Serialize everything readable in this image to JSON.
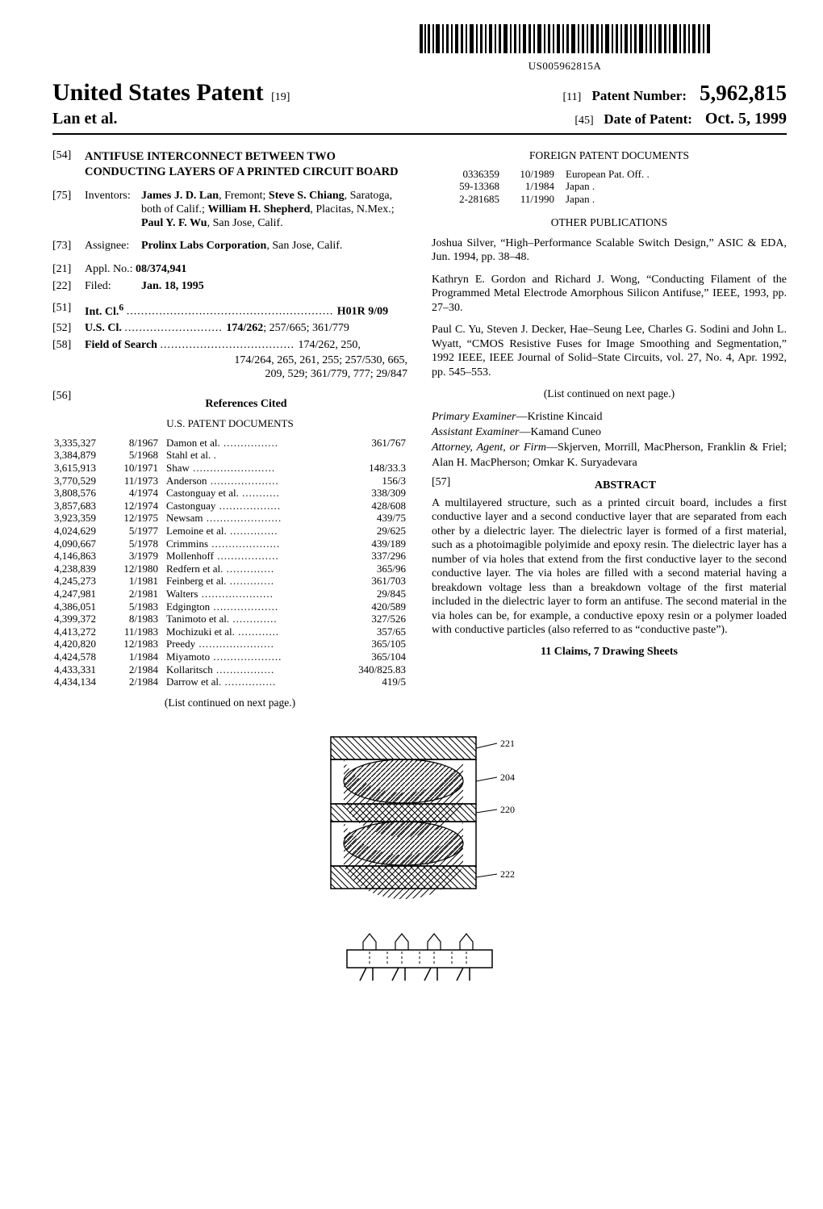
{
  "barcode_text": "US005962815A",
  "header": {
    "usp_title": "United States Patent",
    "usp_bracket": "[19]",
    "inventors_line": "Lan et al.",
    "patent_number_bracket": "[11]",
    "patent_number_label": "Patent Number:",
    "patent_number": "5,962,815",
    "date_bracket": "[45]",
    "date_label": "Date of Patent:",
    "date_value": "Oct. 5, 1999"
  },
  "left": {
    "f54_bracket": "[54]",
    "f54_title": "ANTIFUSE INTERCONNECT BETWEEN TWO CONDUCTING LAYERS OF A PRINTED CIRCUIT BOARD",
    "f75_bracket": "[75]",
    "f75_label": "Inventors:",
    "f75_value_1": "James J. D. Lan",
    "f75_value_1b": ", Fremont; ",
    "f75_value_2": "Steve S. Chiang",
    "f75_value_2b": ", Saratoga, both of Calif.; ",
    "f75_value_3": "William H. Shepherd",
    "f75_value_3b": ", Placitas, N.Mex.; ",
    "f75_value_4": "Paul Y. F. Wu",
    "f75_value_4b": ", San Jose, Calif.",
    "f73_bracket": "[73]",
    "f73_label": "Assignee:",
    "f73_value_1": "Prolinx Labs Corporation",
    "f73_value_1b": ", San Jose, Calif.",
    "f21_bracket": "[21]",
    "f21_label": "Appl. No.:",
    "f21_value": "08/374,941",
    "f22_bracket": "[22]",
    "f22_label": "Filed:",
    "f22_value": "Jan. 18, 1995",
    "f51_bracket": "[51]",
    "f51_label": "Int. Cl.",
    "f51_sup": "6",
    "f51_value": "H01R 9/09",
    "f52_bracket": "[52]",
    "f52_label": "U.S. Cl.",
    "f52_value": "174/262",
    "f52_value2": "; 257/665; 361/779",
    "f58_bracket": "[58]",
    "f58_label": "Field of Search",
    "f58_value": "174/262, 250,",
    "f58_value2": "174/264, 265, 261, 255; 257/530, 665,",
    "f58_value3": "209, 529; 361/779, 777; 29/847",
    "f56_bracket": "[56]",
    "f56_label": "References Cited",
    "us_patents_heading": "U.S. PATENT DOCUMENTS",
    "us_patents": [
      {
        "no": "3,335,327",
        "date": "8/1967",
        "auth": "Damon et al.",
        "cls": "361/767"
      },
      {
        "no": "3,384,879",
        "date": "5/1968",
        "auth": "Stahl et al. .",
        "cls": ""
      },
      {
        "no": "3,615,913",
        "date": "10/1971",
        "auth": "Shaw",
        "cls": "148/33.3"
      },
      {
        "no": "3,770,529",
        "date": "11/1973",
        "auth": "Anderson",
        "cls": "156/3"
      },
      {
        "no": "3,808,576",
        "date": "4/1974",
        "auth": "Castonguay et al.",
        "cls": "338/309"
      },
      {
        "no": "3,857,683",
        "date": "12/1974",
        "auth": "Castonguay",
        "cls": "428/608"
      },
      {
        "no": "3,923,359",
        "date": "12/1975",
        "auth": "Newsam",
        "cls": "439/75"
      },
      {
        "no": "4,024,629",
        "date": "5/1977",
        "auth": "Lemoine et al.",
        "cls": "29/625"
      },
      {
        "no": "4,090,667",
        "date": "5/1978",
        "auth": "Crimmins",
        "cls": "439/189"
      },
      {
        "no": "4,146,863",
        "date": "3/1979",
        "auth": "Mollenhoff",
        "cls": "337/296"
      },
      {
        "no": "4,238,839",
        "date": "12/1980",
        "auth": "Redfern et al.",
        "cls": "365/96"
      },
      {
        "no": "4,245,273",
        "date": "1/1981",
        "auth": "Feinberg et al.",
        "cls": "361/703"
      },
      {
        "no": "4,247,981",
        "date": "2/1981",
        "auth": "Walters",
        "cls": "29/845"
      },
      {
        "no": "4,386,051",
        "date": "5/1983",
        "auth": "Edgington",
        "cls": "420/589"
      },
      {
        "no": "4,399,372",
        "date": "8/1983",
        "auth": "Tanimoto et al.",
        "cls": "327/526"
      },
      {
        "no": "4,413,272",
        "date": "11/1983",
        "auth": "Mochizuki et al.",
        "cls": "357/65"
      },
      {
        "no": "4,420,820",
        "date": "12/1983",
        "auth": "Preedy",
        "cls": "365/105"
      },
      {
        "no": "4,424,578",
        "date": "1/1984",
        "auth": "Miyamoto",
        "cls": "365/104"
      },
      {
        "no": "4,433,331",
        "date": "2/1984",
        "auth": "Kollaritsch",
        "cls": "340/825.83"
      },
      {
        "no": "4,434,134",
        "date": "2/1984",
        "auth": "Darrow et al.",
        "cls": "419/5"
      }
    ],
    "list_continued": "(List continued on next page.)"
  },
  "right": {
    "foreign_heading": "FOREIGN PATENT DOCUMENTS",
    "foreign": [
      {
        "no": "0336359",
        "date": "10/1989",
        "country": "European Pat. Off. ."
      },
      {
        "no": "59-13368",
        "date": "1/1984",
        "country": "Japan ."
      },
      {
        "no": "2-281685",
        "date": "11/1990",
        "country": "Japan ."
      }
    ],
    "other_pubs_heading": "OTHER PUBLICATIONS",
    "pubs": [
      "Joshua Silver, “High–Performance Scalable Switch Design,” ASIC & EDA, Jun. 1994, pp. 38–48.",
      "Kathryn E. Gordon and Richard J. Wong, “Conducting Filament of the Programmed Metal Electrode Amorphous Silicon Antifuse,” IEEE, 1993, pp. 27–30.",
      "Paul C. Yu, Steven J. Decker, Hae–Seung Lee, Charles G. Sodini and John L. Wyatt, “CMOS Resistive Fuses for Image Smoothing and Segmentation,” 1992 IEEE, IEEE Journal of Solid–State Circuits, vol. 27, No. 4, Apr. 1992, pp. 545–553."
    ],
    "list_continued": "(List continued on next page.)",
    "primary_examiner_label": "Primary Examiner",
    "primary_examiner": "—Kristine Kincaid",
    "assistant_examiner_label": "Assistant Examiner",
    "assistant_examiner": "—Kamand Cuneo",
    "attorney_label": "Attorney, Agent, or Firm",
    "attorney": "—Skjerven, Morrill, MacPherson, Franklin & Friel; Alan H. MacPherson; Omkar K. Suryadevara",
    "abstract_bracket": "[57]",
    "abstract_label": "ABSTRACT",
    "abstract_text": "A multilayered structure, such as a printed circuit board, includes a first conductive layer and a second conductive layer that are separated from each other by a dielectric layer. The dielectric layer is formed of a first material, such as a photoimagible polyimide and epoxy resin. The dielectric layer has a number of via holes that extend from the first conductive layer to the second conductive layer. The via holes are filled with a second material having a breakdown voltage less than a breakdown voltage of the first material included in the dielectric layer to form an antifuse. The second material in the via holes can be, for example, a conductive epoxy resin or a polymer loaded with conductive particles (also referred to as “conductive paste”).",
    "claims_line": "11 Claims, 7 Drawing Sheets"
  },
  "figure": {
    "labels": [
      "221",
      "204",
      "220",
      "222"
    ]
  }
}
